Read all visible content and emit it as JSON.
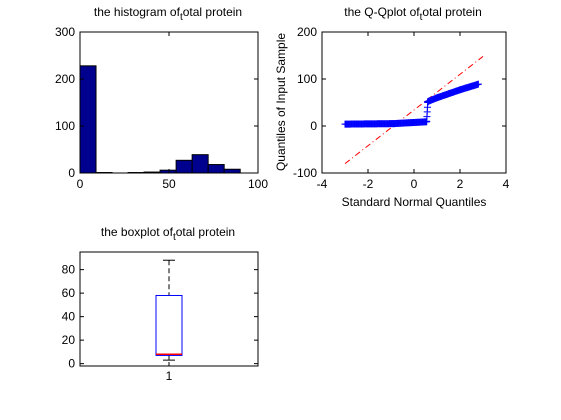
{
  "chart_data": [
    {
      "type": "bar",
      "title": "the histogram of total protein",
      "title_main": "the histogram of",
      "title_sub": "t",
      "title_rest": "otal protein",
      "xlim": [
        0,
        100
      ],
      "ylim": [
        0,
        300
      ],
      "xticks": [
        "0",
        "50",
        "100"
      ],
      "yticks": [
        "0",
        "100",
        "200",
        "300"
      ],
      "bin_edges": [
        0,
        9,
        18,
        27,
        36,
        45,
        54,
        63,
        72,
        81,
        90
      ],
      "values": [
        228,
        1,
        0,
        1,
        2,
        6,
        27,
        39,
        18,
        8
      ],
      "bar_color": "#00008f",
      "grid": false
    },
    {
      "type": "scatter",
      "title": "the Q-Qplot of total protein",
      "title_main": "the Q-Qplot of",
      "title_sub": "t",
      "title_rest": "otal protein",
      "xlabel": "Standard Normal Quantiles",
      "ylabel": "Quantiles of Input Sample",
      "xlim": [
        -4,
        4
      ],
      "ylim": [
        -100,
        200
      ],
      "xticks": [
        "-4",
        "-2",
        "0",
        "2",
        "4"
      ],
      "yticks": [
        "-100",
        "0",
        "100",
        "200"
      ],
      "marker": "+",
      "marker_color": "#0000ff",
      "reference_line": {
        "x": [
          -3,
          3
        ],
        "y": [
          -80,
          148
        ],
        "style": "dash-dot",
        "color": "#ff0000"
      },
      "segments": [
        {
          "x_from": -3.0,
          "x_to": -0.9,
          "y_from": 4,
          "y_to": 5
        },
        {
          "x_from": -0.9,
          "x_to": 0.55,
          "y_from": 5,
          "y_to": 9
        },
        {
          "x_from": 0.55,
          "x_to": 0.6,
          "y_from": 10,
          "y_to": 50
        },
        {
          "x_from": 0.6,
          "x_to": 1.0,
          "y_from": 52,
          "y_to": 60
        },
        {
          "x_from": 1.0,
          "x_to": 2.0,
          "y_from": 60,
          "y_to": 77
        },
        {
          "x_from": 2.0,
          "x_to": 2.8,
          "y_from": 77,
          "y_to": 89
        }
      ],
      "grid": false
    },
    {
      "type": "boxplot",
      "title": "the boxplot of total protein",
      "title_main": "the boxplot of",
      "title_sub": "t",
      "title_rest": "otal protein",
      "categories": [
        "1"
      ],
      "ylim": [
        -2,
        95
      ],
      "yticks": [
        "0",
        "20",
        "40",
        "60",
        "80"
      ],
      "min": 3,
      "q1": 7,
      "median": 8,
      "q3": 58,
      "max": 88,
      "box_color": "#0000ff",
      "median_color": "#ff0000",
      "whisker_color": "#000000",
      "grid": false
    }
  ]
}
